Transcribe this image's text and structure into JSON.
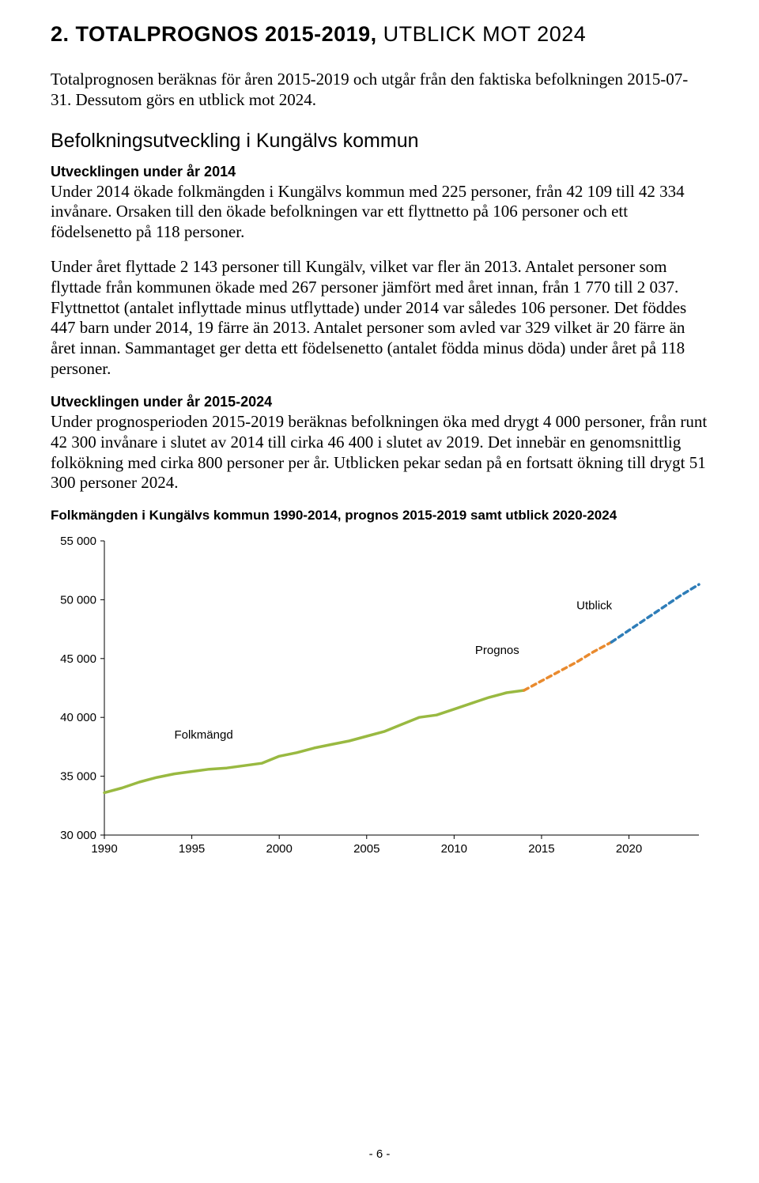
{
  "title": {
    "main": "2. TOTALPROGNOS 2015-2019, ",
    "sub": "UTBLICK MOT 2024"
  },
  "intro": "Totalprognosen beräknas för åren 2015-2019 och utgår från den faktiska befolkningen 2015-07-31. Dessutom görs en utblick mot 2024.",
  "section1": {
    "heading": "Befolkningsutveckling i Kungälvs kommun",
    "sub1": "Utvecklingen under år 2014",
    "p1": "Under 2014 ökade folkmängden i Kungälvs kommun med 225 personer, från 42 109 till 42 334 invånare. Orsaken till den ökade befolkningen var ett flyttnetto på 106 personer och ett födelsenetto på 118 personer.",
    "p2": "Under året flyttade 2 143 personer till Kungälv, vilket var fler än 2013. Antalet personer som flyttade från kommunen ökade med 267 personer jämfört med året innan, från 1 770 till 2 037. Flyttnettot (antalet inflyttade minus utflyttade) under 2014 var således 106 personer. Det föddes 447 barn under 2014, 19 färre än 2013. Antalet personer som avled var 329 vilket är 20 färre än året innan. Sammantaget ger detta ett födelsenetto (antalet födda minus döda) under året på 118 personer.",
    "sub2": "Utvecklingen under år 2015-2024",
    "p3": "Under prognosperioden 2015-2019 beräknas befolkningen öka med drygt 4 000 personer, från runt 42 300 invånare i slutet av 2014 till cirka 46 400 i slutet av 2019. Det innebär en genomsnittlig folkökning med cirka 800 personer per år. Utblicken pekar sedan på en fortsatt ökning till drygt 51 300 personer 2024."
  },
  "chart": {
    "caption": "Folkmängden i Kungälvs kommun 1990-2014, prognos 2015-2019 samt utblick 2020-2024",
    "type": "line",
    "background_color": "#ffffff",
    "border_color": "#000000",
    "axis_fontsize": 15,
    "label_fontsize": 15,
    "ymin": 30000,
    "ymax": 55000,
    "ytick_step": 5000,
    "ytick_labels": [
      "30 000",
      "35 000",
      "40 000",
      "45 000",
      "50 000",
      "55 000"
    ],
    "xmin": 1990,
    "xmax": 2024,
    "xtick_step": 5,
    "xtick_labels": [
      "1990",
      "1995",
      "2000",
      "2005",
      "2010",
      "2015",
      "2020"
    ],
    "series": [
      {
        "name": "Folkmängd",
        "label": "Folkmängd",
        "label_x": 1994,
        "label_y": 38200,
        "color": "#99b941",
        "line_width": 3.5,
        "dash": "none",
        "x": [
          1990,
          1991,
          1992,
          1993,
          1994,
          1995,
          1996,
          1997,
          1998,
          1999,
          2000,
          2001,
          2002,
          2003,
          2004,
          2005,
          2006,
          2007,
          2008,
          2009,
          2010,
          2011,
          2012,
          2013,
          2014
        ],
        "y": [
          33600,
          34000,
          34500,
          34900,
          35200,
          35400,
          35600,
          35700,
          35900,
          36100,
          36700,
          37000,
          37400,
          37700,
          38000,
          38400,
          38800,
          39400,
          40000,
          40200,
          40700,
          41200,
          41700,
          42100,
          42300
        ]
      },
      {
        "name": "Prognos",
        "label": "Prognos",
        "label_x": 2011.2,
        "label_y": 45400,
        "color": "#e98a2e",
        "line_width": 3.5,
        "dash": "6 5",
        "x": [
          2014,
          2015,
          2016,
          2017,
          2018,
          2019
        ],
        "y": [
          42300,
          43100,
          43900,
          44700,
          45600,
          46400
        ]
      },
      {
        "name": "Utblick",
        "label": "Utblick",
        "label_x": 2017,
        "label_y": 49200,
        "color": "#2e7db8",
        "line_width": 3.5,
        "dash": "6 5",
        "x": [
          2019,
          2020,
          2021,
          2022,
          2023,
          2024
        ],
        "y": [
          46400,
          47400,
          48400,
          49400,
          50400,
          51300
        ]
      }
    ]
  },
  "page_number": "- 6 -"
}
